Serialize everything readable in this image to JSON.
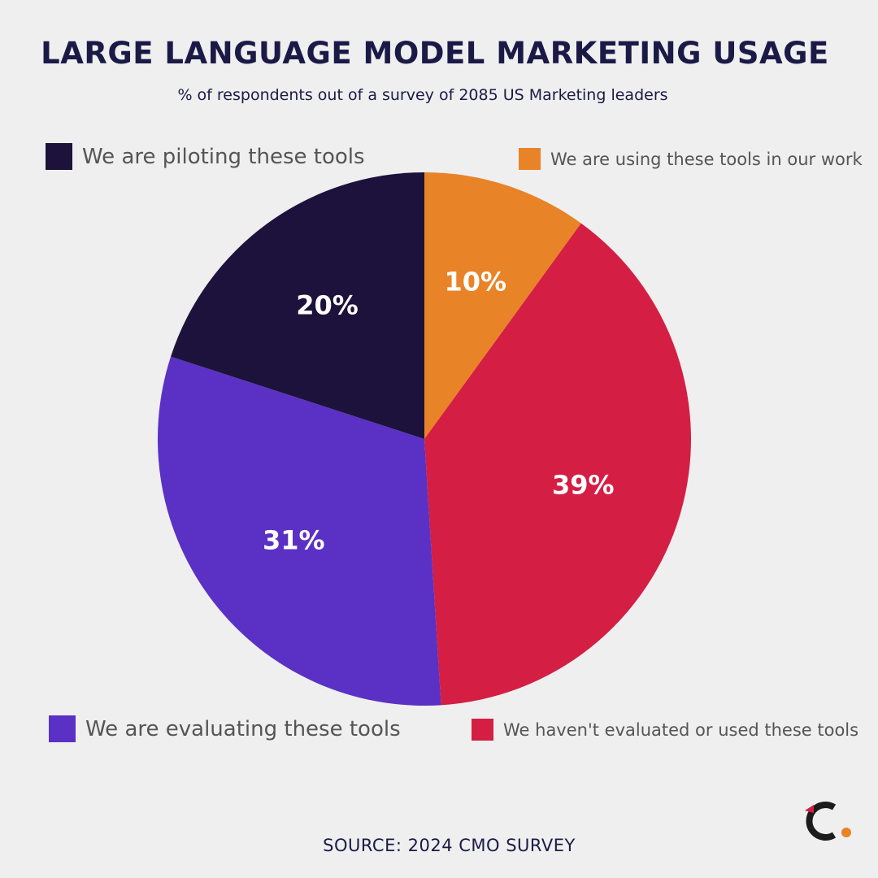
{
  "title": "LARGE LANGUAGE MODEL MARKETING USAGE",
  "subtitle": "% of respondents out of a survey of 2085 US Marketing leaders",
  "source": "SOURCE: 2024 CMO SURVEY",
  "logo_icon": "brand-c-logo-icon",
  "colors": {
    "background": "#efefef",
    "title": "#1b1a47",
    "label_on_slice": "#ffffff"
  },
  "chart_data": {
    "type": "pie",
    "start_angle_deg": 0,
    "direction": "clockwise",
    "legend": [
      "We are piloting these tools",
      "We are using these tools in our work",
      "We are evaluating these tools",
      "We haven't evaluated or used these tools"
    ],
    "slices": [
      {
        "label": "We are using these tools in our work",
        "value": 10,
        "display": "10%",
        "color": "#e88327"
      },
      {
        "label": "We haven't evaluated or used these tools",
        "value": 39,
        "display": "39%",
        "color": "#d41e43"
      },
      {
        "label": "We are evaluating these tools",
        "value": 31,
        "display": "31%",
        "color": "#5a31c4"
      },
      {
        "label": "We are piloting these tools",
        "value": 20,
        "display": "20%",
        "color": "#1c123b"
      }
    ]
  }
}
